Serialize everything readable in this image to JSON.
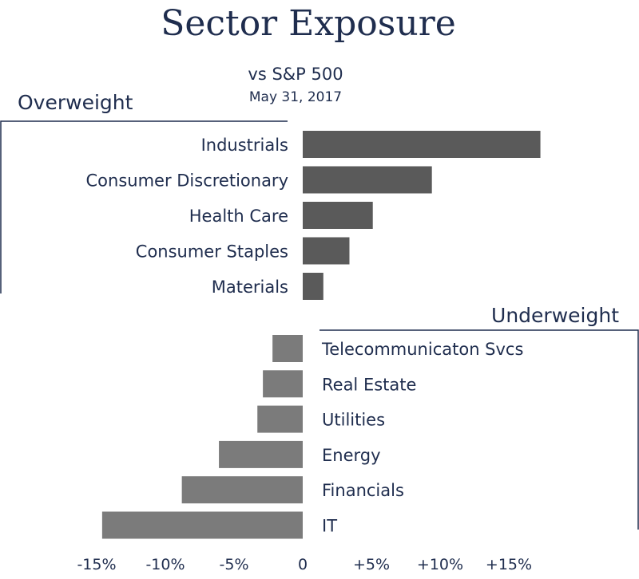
{
  "chart_data": {
    "type": "bar",
    "orientation": "horizontal",
    "title": "Sector Exposure",
    "subtitle": "vs S&P 500",
    "date": "May 31, 2017",
    "groups": [
      {
        "label": "Overweight",
        "color": "#5a5a5a",
        "categories": [
          "Industrials",
          "Consumer Discretionary",
          "Health Care",
          "Consumer Staples",
          "Materials"
        ],
        "values": [
          17.3,
          9.4,
          5.1,
          3.4,
          1.5
        ]
      },
      {
        "label": "Underweight",
        "color": "#7b7b7b",
        "categories": [
          "Telecommunicaton Svcs",
          "Real Estate",
          "Utilities",
          "Energy",
          "Financials",
          "IT"
        ],
        "values": [
          -2.2,
          -2.9,
          -3.3,
          -6.1,
          -8.8,
          -14.6
        ]
      }
    ],
    "xlim": [
      -16.5,
      17.5
    ],
    "ticks": [
      {
        "value": -15,
        "label": "-15%"
      },
      {
        "value": -10,
        "label": "-10%"
      },
      {
        "value": -5,
        "label": "-5%"
      },
      {
        "value": 0,
        "label": "0"
      },
      {
        "value": 5,
        "label": "+5%"
      },
      {
        "value": 10,
        "label": "+10%"
      },
      {
        "value": 15,
        "label": "+15%"
      }
    ],
    "grid": false,
    "text_color": "#1f2d4e"
  }
}
